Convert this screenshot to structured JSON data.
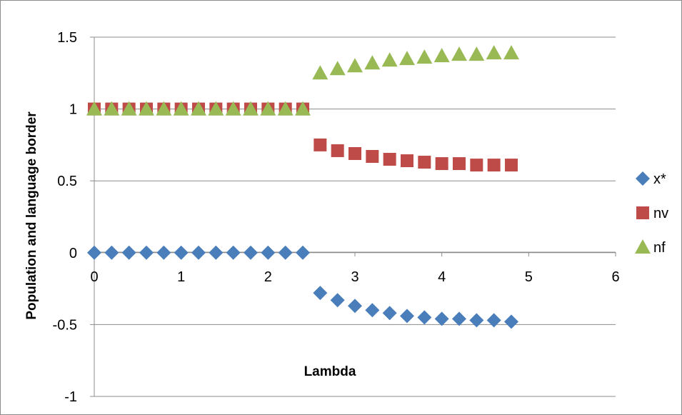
{
  "chart_data": {
    "type": "scatter",
    "title": "",
    "xlabel": "Lambda",
    "ylabel": "Population and language border",
    "xlim": [
      0,
      6
    ],
    "ylim": [
      -1,
      1.5
    ],
    "x_ticks": [
      "0",
      "1",
      "2",
      "3",
      "4",
      "5",
      "6"
    ],
    "y_ticks": [
      "-1",
      "-0.5",
      "0",
      "0.5",
      "1",
      "1.5"
    ],
    "grid": "horizontal",
    "legend_position": "right",
    "series": [
      {
        "name": "x*",
        "marker": "diamond",
        "color": "#4a7ebb",
        "x": [
          0,
          0.2,
          0.4,
          0.6,
          0.8,
          1.0,
          1.2,
          1.4,
          1.6,
          1.8,
          2.0,
          2.2,
          2.4,
          2.6,
          2.8,
          3.0,
          3.2,
          3.4,
          3.6,
          3.8,
          4.0,
          4.2,
          4.4,
          4.6,
          4.8
        ],
        "y": [
          0,
          0,
          0,
          0,
          0,
          0,
          0,
          0,
          0,
          0,
          0,
          0,
          0,
          -0.28,
          -0.33,
          -0.37,
          -0.4,
          -0.42,
          -0.44,
          -0.45,
          -0.46,
          -0.46,
          -0.47,
          -0.47,
          -0.48
        ]
      },
      {
        "name": "nv",
        "marker": "square",
        "color": "#be4b48",
        "x": [
          0,
          0.2,
          0.4,
          0.6,
          0.8,
          1.0,
          1.2,
          1.4,
          1.6,
          1.8,
          2.0,
          2.2,
          2.4,
          2.6,
          2.8,
          3.0,
          3.2,
          3.4,
          3.6,
          3.8,
          4.0,
          4.2,
          4.4,
          4.6,
          4.8
        ],
        "y": [
          1,
          1,
          1,
          1,
          1,
          1,
          1,
          1,
          1,
          1,
          1,
          1,
          1,
          0.75,
          0.71,
          0.69,
          0.67,
          0.65,
          0.64,
          0.63,
          0.62,
          0.62,
          0.61,
          0.61,
          0.61
        ]
      },
      {
        "name": "nf",
        "marker": "triangle",
        "color": "#98b954",
        "x": [
          0,
          0.2,
          0.4,
          0.6,
          0.8,
          1.0,
          1.2,
          1.4,
          1.6,
          1.8,
          2.0,
          2.2,
          2.4,
          2.6,
          2.8,
          3.0,
          3.2,
          3.4,
          3.6,
          3.8,
          4.0,
          4.2,
          4.4,
          4.6,
          4.8
        ],
        "y": [
          1,
          1,
          1,
          1,
          1,
          1,
          1,
          1,
          1,
          1,
          1,
          1,
          1,
          1.25,
          1.28,
          1.3,
          1.32,
          1.34,
          1.35,
          1.36,
          1.37,
          1.38,
          1.38,
          1.39,
          1.39
        ]
      }
    ]
  }
}
